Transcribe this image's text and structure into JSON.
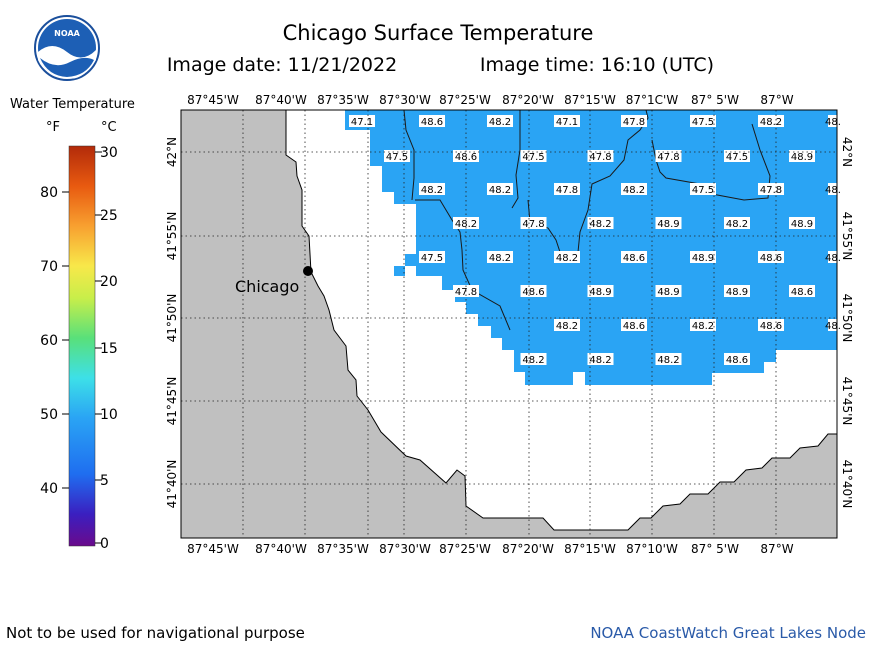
{
  "header": {
    "title": "Chicago Surface Temperature",
    "date_label": "Image date: 11/21/2022",
    "time_label": "Image time: 16:10 (UTC)"
  },
  "logo": {
    "text": "NOAA",
    "icon": "noaa-logo-icon"
  },
  "legend": {
    "title": "Water Temperature",
    "unit_f": "°F",
    "unit_c": "°C",
    "f_ticks": [
      "40",
      "50",
      "60",
      "70",
      "80"
    ],
    "c_ticks": [
      "0",
      "5",
      "10",
      "15",
      "20",
      "25",
      "30"
    ]
  },
  "map": {
    "top_axis_labels": [
      "87°45'W",
      "87°40'W",
      "87°35'W",
      "87°30'W",
      "87°25'W",
      "87°20'W",
      "87°15'W",
      "87°1C'W",
      "87° 5'W",
      "87°W"
    ],
    "bottom_axis_labels": [
      "87°45'W",
      "87°40'W",
      "87°35'W",
      "87°30'W",
      "87°25'W",
      "87°20'W",
      "87°15'W",
      "87°10'W",
      "87° 5'W",
      "87°W"
    ],
    "lat_labels": [
      "42°N",
      "41°55'N",
      "41°50'N",
      "41°45'N",
      "41°40'N"
    ],
    "city": {
      "name": "Chicago"
    },
    "water_color": "#2aa4f4",
    "land_color": "#c0c0c0",
    "readings": [
      "47.1",
      "48.6",
      "48.2",
      "47.1",
      "47.8",
      "47.5",
      "48.2",
      "48.",
      "47.5",
      "48.6",
      "47.5",
      "47.8",
      "47.8",
      "47.5",
      "48.9",
      "48.2",
      "48.2",
      "47.8",
      "48.2",
      "47.5",
      "47.8",
      "48.",
      "48.2",
      "47.8",
      "48.2",
      "48.9",
      "48.2",
      "48.9",
      "47.5",
      "48.2",
      "48.2",
      "48.6",
      "48.9",
      "48.6",
      "48.",
      "47.8",
      "48.6",
      "48.9",
      "48.9",
      "48.9",
      "48.6",
      "48.2",
      "48.6",
      "48.2",
      "48.6",
      "48.",
      "48.2",
      "48.2",
      "48.2",
      "48.6"
    ]
  },
  "footer": {
    "disclaimer": "Not to be used for navigational purpose",
    "credit": "NOAA CoastWatch Great Lakes Node"
  }
}
